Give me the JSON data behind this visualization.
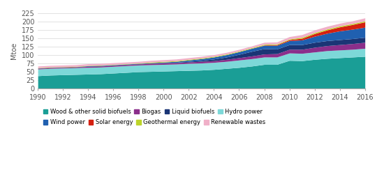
{
  "years": [
    1990,
    1991,
    1992,
    1993,
    1994,
    1995,
    1996,
    1997,
    1998,
    1999,
    2000,
    2001,
    2002,
    2003,
    2004,
    2005,
    2006,
    2007,
    2008,
    2009,
    2010,
    2011,
    2012,
    2013,
    2014,
    2015,
    2016
  ],
  "series": {
    "Wood & other solid biofuels": [
      38,
      40,
      41,
      42,
      43,
      44,
      46,
      48,
      50,
      51,
      52,
      53,
      54,
      55,
      57,
      60,
      63,
      67,
      72,
      72,
      84,
      83,
      87,
      90,
      92,
      94,
      96
    ],
    "Biogas": [
      2,
      2,
      2,
      2,
      3,
      3,
      3,
      3,
      3,
      4,
      4,
      4,
      4,
      5,
      5,
      6,
      7,
      8,
      9,
      10,
      11,
      12,
      14,
      15,
      16,
      17,
      18
    ],
    "Liquid biofuels": [
      1,
      1,
      1,
      1,
      1,
      1,
      1,
      1,
      1,
      1,
      1,
      1,
      2,
      3,
      5,
      7,
      10,
      14,
      16,
      14,
      14,
      14,
      15,
      15,
      15,
      15,
      15
    ],
    "Hydro power": [
      20,
      20,
      20,
      20,
      20,
      20,
      20,
      20,
      20,
      20,
      20,
      20,
      21,
      21,
      21,
      21,
      22,
      22,
      22,
      22,
      22,
      22,
      22,
      23,
      23,
      23,
      24
    ],
    "Wind power": [
      0,
      0,
      0,
      0,
      1,
      1,
      1,
      1,
      1,
      1,
      2,
      3,
      4,
      5,
      6,
      7,
      8,
      9,
      10,
      11,
      12,
      14,
      18,
      22,
      26,
      28,
      30
    ],
    "Solar energy": [
      0,
      0,
      0,
      0,
      0,
      0,
      0,
      0,
      0,
      0,
      0,
      0,
      0,
      0,
      0,
      0,
      0,
      0,
      1,
      2,
      3,
      5,
      8,
      10,
      12,
      14,
      16
    ],
    "Geothermal energy": [
      1,
      1,
      1,
      1,
      1,
      1,
      1,
      1,
      1,
      2,
      2,
      2,
      2,
      2,
      2,
      2,
      2,
      2,
      2,
      2,
      2,
      3,
      3,
      3,
      3,
      3,
      3
    ],
    "Renewable wastes": [
      5,
      5,
      5,
      5,
      5,
      5,
      5,
      5,
      5,
      5,
      5,
      5,
      5,
      5,
      5,
      5,
      5,
      5,
      6,
      6,
      7,
      8,
      8,
      8,
      8,
      8,
      9
    ]
  },
  "stack_order": [
    "Wood & other solid biofuels",
    "Hydro power",
    "Biogas",
    "Liquid biofuels",
    "Wind power",
    "Solar energy",
    "Geothermal energy",
    "Renewable wastes"
  ],
  "colors": {
    "Wood & other solid biofuels": "#1a9e96",
    "Biogas": "#8b2f8b",
    "Liquid biofuels": "#1a3575",
    "Hydro power": "#7dd8d8",
    "Wind power": "#2060b0",
    "Solar energy": "#d42010",
    "Geothermal energy": "#bdd42a",
    "Renewable wastes": "#f0b0c8"
  },
  "ylabel": "Mtoe",
  "ylim": [
    0,
    225
  ],
  "yticks": [
    0,
    25,
    50,
    75,
    100,
    125,
    150,
    175,
    200,
    225
  ],
  "xlim": [
    1990,
    2016
  ],
  "xticks": [
    1990,
    1992,
    1994,
    1996,
    1998,
    2000,
    2002,
    2004,
    2006,
    2008,
    2010,
    2012,
    2014,
    2016
  ],
  "legend_order": [
    "Wood & other solid biofuels",
    "Biogas",
    "Liquid biofuels",
    "Hydro power",
    "Wind power",
    "Solar energy",
    "Geothermal energy",
    "Renewable wastes"
  ]
}
